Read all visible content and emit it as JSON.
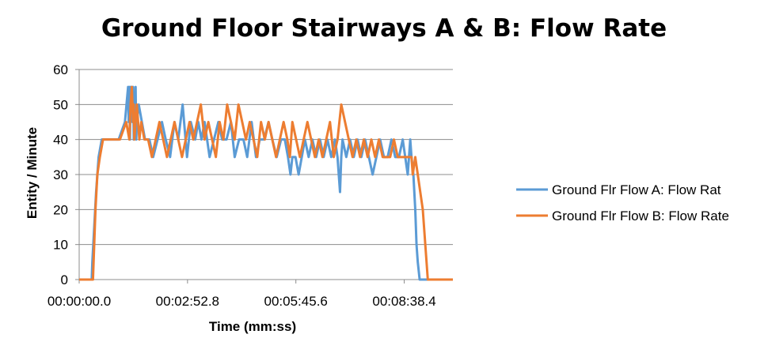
{
  "chart_data": {
    "type": "line",
    "title": "Ground Floor Stairways A & B: Flow Rate",
    "xlabel": "Time (mm:ss)",
    "ylabel": "Entity / Minute",
    "x_unit": "seconds",
    "xlim": [
      0,
      596
    ],
    "ylim": [
      0,
      60
    ],
    "yticks": [
      0,
      10,
      20,
      30,
      40,
      50,
      60
    ],
    "xticks": [
      {
        "value": 0,
        "label": "00:00:00.0"
      },
      {
        "value": 172.8,
        "label": "00:02:52.8"
      },
      {
        "value": 345.6,
        "label": "00:05:45.6"
      },
      {
        "value": 518.4,
        "label": "00:08:38.4"
      }
    ],
    "grid": "horizontal",
    "legend_position": "right",
    "series": [
      {
        "name": "Ground Flr Flow A: Flow Rat",
        "color": "#5B9BD5",
        "x": [
          0,
          20,
          21,
          24,
          27,
          31,
          36,
          43,
          53,
          63,
          73,
          78,
          79,
          80,
          81,
          82,
          83,
          84,
          85,
          86,
          87,
          88,
          89,
          90,
          91,
          92,
          95,
          100,
          105,
          112,
          118,
          125,
          132,
          138,
          145,
          152,
          158,
          165,
          172,
          178,
          185,
          190,
          195,
          200,
          208,
          215,
          222,
          228,
          235,
          242,
          248,
          255,
          262,
          268,
          275,
          282,
          288,
          295,
          302,
          308,
          315,
          322,
          328,
          333,
          337,
          340,
          345,
          350,
          355,
          360,
          366,
          372,
          378,
          384,
          390,
          396,
          402,
          408,
          412,
          414,
          416,
          418,
          420,
          426,
          432,
          438,
          444,
          450,
          456,
          462,
          468,
          474,
          480,
          486,
          492,
          498,
          504,
          510,
          516,
          520,
          524,
          526,
          528,
          530,
          533,
          536,
          538,
          540,
          543,
          546,
          548,
          552,
          560,
          580,
          596
        ],
        "y": [
          0,
          0,
          5,
          15,
          25,
          35,
          40,
          40,
          40,
          40,
          45,
          55,
          45,
          55,
          40,
          55,
          50,
          55,
          45,
          55,
          40,
          50,
          45,
          55,
          40,
          45,
          50,
          45,
          40,
          40,
          35,
          40,
          45,
          40,
          35,
          45,
          40,
          50,
          35,
          45,
          40,
          45,
          40,
          45,
          35,
          40,
          45,
          40,
          40,
          45,
          35,
          40,
          40,
          35,
          45,
          35,
          40,
          40,
          45,
          40,
          35,
          40,
          40,
          35,
          30,
          35,
          35,
          30,
          35,
          40,
          35,
          40,
          35,
          40,
          35,
          40,
          35,
          40,
          35,
          30,
          25,
          35,
          40,
          35,
          40,
          35,
          40,
          35,
          40,
          35,
          30,
          35,
          40,
          35,
          35,
          40,
          35,
          35,
          40,
          35,
          30,
          35,
          40,
          35,
          30,
          20,
          10,
          5,
          0,
          0,
          0,
          0,
          0,
          0,
          0
        ]
      },
      {
        "name": "Ground Flr Flow B: Flow Rate",
        "color": "#ED7D31",
        "x": [
          0,
          22,
          23,
          26,
          29,
          33,
          38,
          45,
          55,
          65,
          75,
          80,
          81,
          82,
          84,
          86,
          87,
          88,
          90,
          92,
          94,
          96,
          99,
          104,
          110,
          116,
          122,
          128,
          134,
          140,
          146,
          152,
          158,
          164,
          170,
          176,
          182,
          188,
          194,
          200,
          206,
          212,
          218,
          224,
          230,
          236,
          242,
          248,
          254,
          260,
          266,
          272,
          278,
          284,
          290,
          296,
          302,
          308,
          314,
          320,
          326,
          332,
          336,
          340,
          346,
          352,
          358,
          364,
          370,
          376,
          382,
          388,
          394,
          400,
          406,
          412,
          418,
          424,
          430,
          436,
          442,
          448,
          454,
          460,
          466,
          472,
          478,
          484,
          490,
          496,
          502,
          508,
          514,
          520,
          526,
          530,
          532,
          536,
          540,
          544,
          548,
          550,
          552,
          554,
          556,
          560,
          570,
          596
        ],
        "y": [
          0,
          0,
          5,
          20,
          30,
          35,
          40,
          40,
          40,
          40,
          45,
          40,
          45,
          50,
          55,
          45,
          50,
          40,
          45,
          50,
          45,
          40,
          45,
          40,
          40,
          35,
          40,
          45,
          40,
          35,
          40,
          45,
          40,
          35,
          40,
          45,
          40,
          45,
          50,
          40,
          45,
          40,
          35,
          45,
          40,
          50,
          45,
          40,
          50,
          45,
          40,
          45,
          40,
          35,
          45,
          40,
          45,
          40,
          35,
          40,
          45,
          40,
          35,
          45,
          40,
          35,
          40,
          45,
          40,
          35,
          40,
          35,
          40,
          45,
          35,
          40,
          50,
          45,
          40,
          35,
          40,
          35,
          40,
          35,
          40,
          35,
          40,
          35,
          35,
          35,
          40,
          35,
          35,
          35,
          35,
          35,
          30,
          35,
          30,
          25,
          20,
          15,
          10,
          5,
          0,
          0,
          0,
          0
        ]
      }
    ]
  }
}
